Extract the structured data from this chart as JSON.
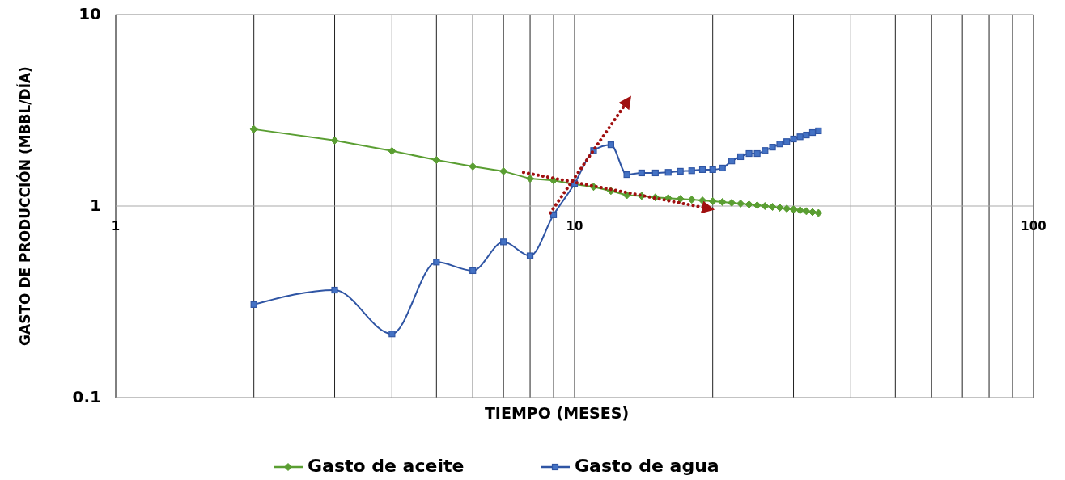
{
  "chart_data": {
    "type": "line",
    "xlabel": "TIEMPO (MESES)",
    "ylabel": "GASTO DE PRODUCCIÓN (MBBL/DÍA)",
    "log": "xy",
    "grid": true,
    "legend": "bottom",
    "xlim": [
      1,
      100
    ],
    "ylim": [
      0.1,
      10
    ],
    "xticks": [
      1,
      {
        "value": 2,
        "label": null
      },
      {
        "value": 3,
        "label": null
      },
      {
        "value": 4,
        "label": null
      },
      {
        "value": 5,
        "label": null
      },
      {
        "value": 6,
        "label": null
      },
      {
        "value": 7,
        "label": null
      },
      {
        "value": 8,
        "label": null
      },
      {
        "value": 9,
        "label": null
      },
      10,
      {
        "value": 20,
        "label": null
      },
      {
        "value": 30,
        "label": null
      },
      {
        "value": 40,
        "label": null
      },
      {
        "value": 50,
        "label": null
      },
      {
        "value": 60,
        "label": null
      },
      {
        "value": 70,
        "label": null
      },
      {
        "value": 80,
        "label": null
      },
      {
        "value": 90,
        "label": null
      },
      100
    ],
    "yticks": [
      0.1,
      1,
      10
    ],
    "x": [
      2,
      3,
      4,
      5,
      6,
      7,
      8,
      9,
      10,
      11,
      12,
      13,
      14,
      15,
      16,
      17,
      18,
      19,
      20,
      21,
      22,
      23,
      24,
      25,
      26,
      27,
      28,
      29,
      30,
      31,
      32,
      33,
      34
    ],
    "series": [
      {
        "name": "Gasto de aceite",
        "color": "#5a9e32",
        "marker": "diamond",
        "values": [
          2.52,
          2.2,
          1.94,
          1.74,
          1.61,
          1.52,
          1.39,
          1.36,
          1.3,
          1.26,
          1.2,
          1.14,
          1.13,
          1.11,
          1.1,
          1.09,
          1.08,
          1.07,
          1.06,
          1.05,
          1.04,
          1.03,
          1.02,
          1.01,
          1.0,
          0.99,
          0.98,
          0.97,
          0.96,
          0.95,
          0.94,
          0.93,
          0.92
        ]
      },
      {
        "name": "Gasto de agua",
        "color": "#2f55a4",
        "marker": "square",
        "values": [
          0.306,
          0.364,
          0.215,
          0.51,
          0.46,
          0.65,
          0.55,
          0.9,
          1.31,
          1.95,
          2.09,
          1.46,
          1.49,
          1.49,
          1.5,
          1.52,
          1.53,
          1.55,
          1.55,
          1.58,
          1.72,
          1.81,
          1.88,
          1.88,
          1.95,
          2.03,
          2.11,
          2.17,
          2.24,
          2.3,
          2.35,
          2.42,
          2.47
        ]
      },
      {
        "type": "line",
        "color": "#a01010",
        "marker": "none",
        "line_style": "dotted",
        "x": [
          8.85,
          12.9
        ],
        "values": [
          0.92,
          3.4
        ]
      },
      {
        "type": "line",
        "color": "#a01010",
        "marker": "none",
        "line_style": "dotted",
        "x": [
          7.74,
          19.2
        ],
        "values": [
          1.5,
          0.98
        ]
      }
    ]
  }
}
